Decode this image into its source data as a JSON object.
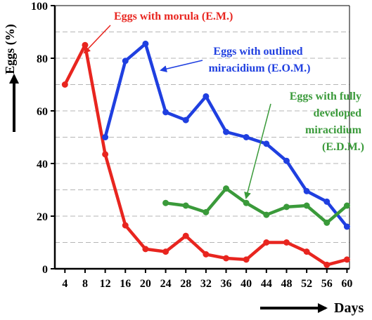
{
  "chart_data": {
    "type": "line",
    "ylabel": "Eggs (%)",
    "xlabel": "Days",
    "ylim": [
      0,
      100
    ],
    "xlim": [
      2,
      60.5
    ],
    "x_ticks": [
      4,
      8,
      12,
      16,
      20,
      24,
      28,
      32,
      36,
      40,
      44,
      48,
      52,
      56,
      60
    ],
    "y_ticks": [
      0,
      20,
      40,
      60,
      80,
      100
    ],
    "grid": "horizontal dashed",
    "series": [
      {
        "color": "#e8251f",
        "points": [
          [
            4,
            70
          ],
          [
            8,
            85
          ],
          [
            12,
            43.5
          ],
          [
            16,
            16.5
          ],
          [
            20,
            7.5
          ],
          [
            24,
            6.5
          ],
          [
            28,
            12.5
          ],
          [
            32,
            5.5
          ],
          [
            36,
            4
          ],
          [
            40,
            3.5
          ],
          [
            44,
            10
          ],
          [
            48,
            10
          ],
          [
            52,
            6.5
          ],
          [
            56,
            1.5
          ],
          [
            60,
            3.5
          ]
        ]
      },
      {
        "color": "#1f3fe0",
        "points": [
          [
            12,
            50
          ],
          [
            16,
            79
          ],
          [
            20,
            85.5
          ],
          [
            24,
            59.5
          ],
          [
            28,
            56.5
          ],
          [
            32,
            65.5
          ],
          [
            36,
            52
          ],
          [
            40,
            50
          ],
          [
            44,
            47.5
          ],
          [
            48,
            41
          ],
          [
            52,
            29.5
          ],
          [
            56,
            25.5
          ],
          [
            60,
            16
          ]
        ]
      },
      {
        "color": "#3a9a3a",
        "points": [
          [
            24,
            25
          ],
          [
            28,
            24
          ],
          [
            32,
            21.5
          ],
          [
            36,
            30.5
          ],
          [
            40,
            25
          ],
          [
            44,
            20.5
          ],
          [
            48,
            23.5
          ],
          [
            52,
            24
          ],
          [
            56,
            17.5
          ],
          [
            60,
            24
          ]
        ]
      }
    ],
    "annotations": [
      {
        "lines": [
          "Eggs with morula (E.M.)"
        ],
        "color": "#e8251f"
      },
      {
        "lines": [
          "Eggs with outlined",
          "miracidium (E.O.M.)"
        ],
        "color": "#1f3fe0"
      },
      {
        "lines": [
          "Eggs with fully",
          "developed",
          "miracidium",
          "(E.D.M.)"
        ],
        "color": "#3a9a3a"
      }
    ]
  }
}
